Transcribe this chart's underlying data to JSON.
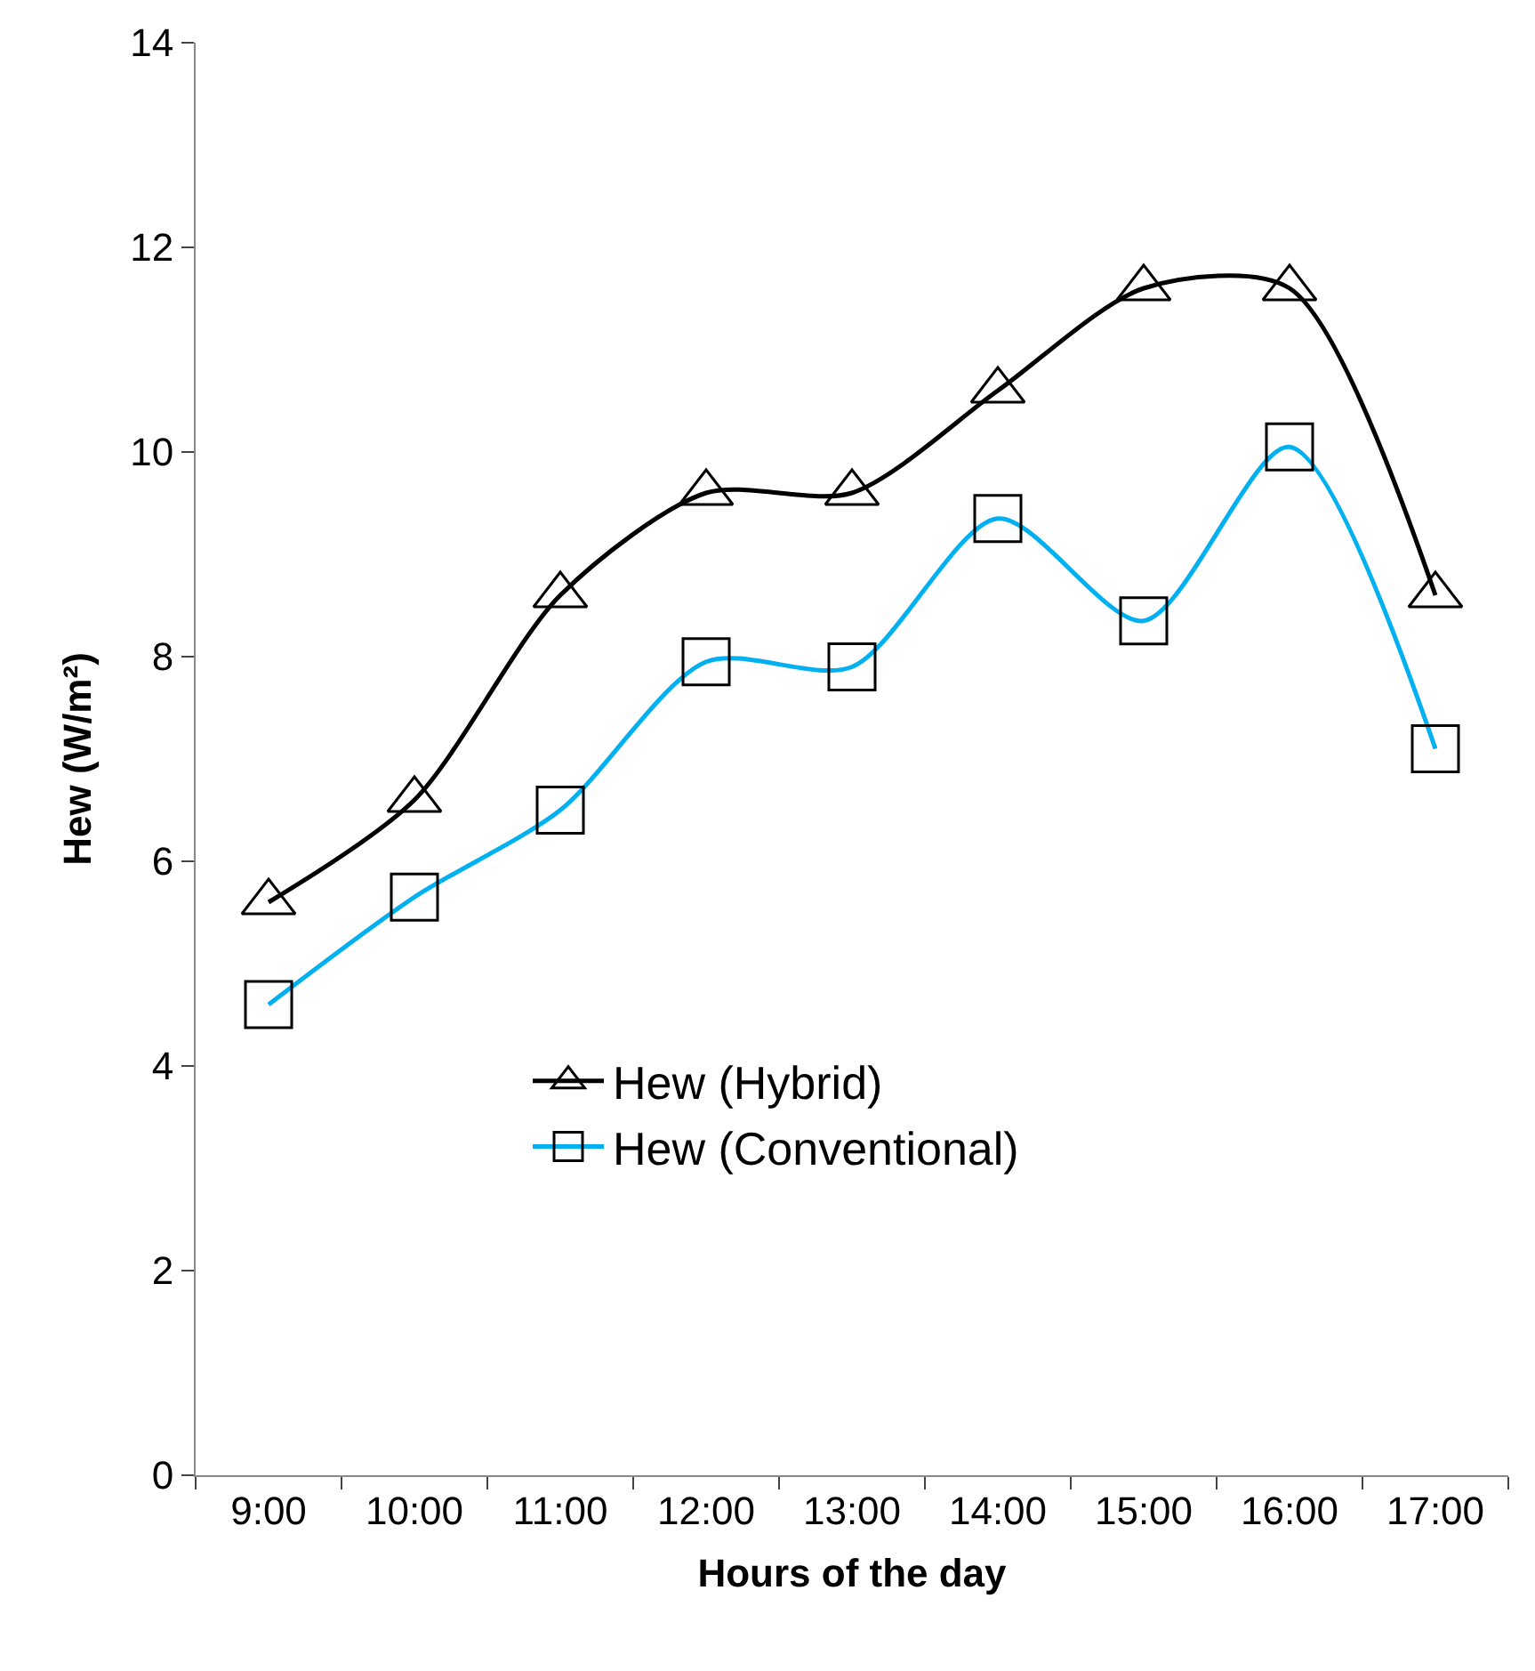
{
  "chart_data": {
    "type": "line",
    "xlabel": "Hours of the day",
    "ylabel": "Hew (W/m²)",
    "categories": [
      "9:00",
      "10:00",
      "11:00",
      "12:00",
      "13:00",
      "14:00",
      "15:00",
      "16:00",
      "17:00"
    ],
    "series": [
      {
        "name": "Hew (Hybrid)",
        "color": "#000000",
        "marker": "triangle",
        "values": [
          5.6,
          6.6,
          8.6,
          9.6,
          9.6,
          10.6,
          11.6,
          11.6,
          8.6
        ]
      },
      {
        "name": "Hew (Conventional)",
        "color": "#00b0f0",
        "marker": "square",
        "values": [
          4.6,
          5.65,
          6.5,
          7.95,
          7.9,
          9.35,
          8.35,
          10.05,
          7.1
        ]
      }
    ],
    "ylim": [
      0,
      14
    ],
    "yticks": [
      0,
      2,
      4,
      6,
      8,
      10,
      12,
      14
    ],
    "legend": "bottom",
    "line_style": "solid"
  }
}
